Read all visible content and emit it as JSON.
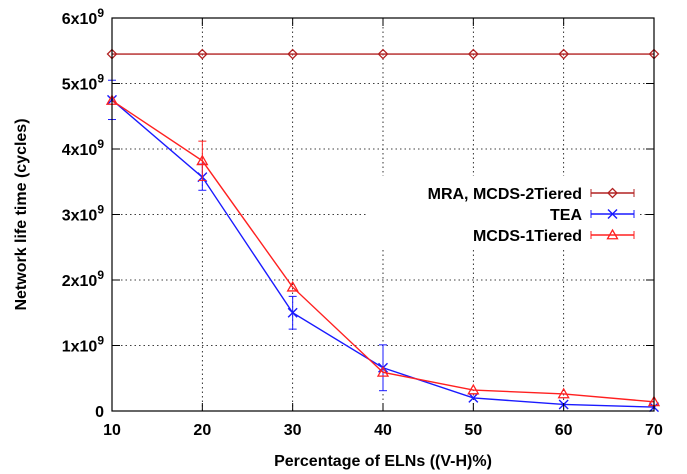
{
  "chart_data": {
    "type": "line",
    "xlabel": "Percentage of ELNs ((V-H)%)",
    "ylabel": "Network life time (cycles)",
    "xlim": [
      10,
      70
    ],
    "ylim": [
      0,
      6000000000
    ],
    "x": [
      10,
      20,
      30,
      40,
      50,
      60,
      70
    ],
    "x_ticks": [
      "10",
      "20",
      "30",
      "40",
      "50",
      "60",
      "70"
    ],
    "y_ticks": [
      {
        "value": 0,
        "base": "0",
        "exp": ""
      },
      {
        "value": 1000000000,
        "base": "1x10",
        "exp": "9"
      },
      {
        "value": 2000000000,
        "base": "2x10",
        "exp": "9"
      },
      {
        "value": 3000000000,
        "base": "3x10",
        "exp": "9"
      },
      {
        "value": 4000000000,
        "base": "4x10",
        "exp": "9"
      },
      {
        "value": 5000000000,
        "base": "5x10",
        "exp": "9"
      },
      {
        "value": 6000000000,
        "base": "6x10",
        "exp": "9"
      }
    ],
    "grid": true,
    "legend_position": "right",
    "series": [
      {
        "name": "MRA, MCDS-2Tiered",
        "color": "#b22222",
        "marker": "diamond",
        "values": [
          5450000000,
          5450000000,
          5450000000,
          5450000000,
          5450000000,
          5450000000,
          5450000000
        ],
        "errors": [
          0,
          0,
          0,
          0,
          0,
          0,
          0
        ]
      },
      {
        "name": "TEA",
        "color": "#1a1aff",
        "marker": "x",
        "values": [
          4750000000,
          3570000000,
          1500000000,
          660000000,
          200000000,
          100000000,
          60000000
        ],
        "errors": [
          300000000,
          200000000,
          250000000,
          350000000,
          0,
          0,
          0
        ]
      },
      {
        "name": "MCDS-1Tiered",
        "color": "#ff2020",
        "marker": "triangle",
        "values": [
          4740000000,
          3820000000,
          1890000000,
          590000000,
          320000000,
          260000000,
          140000000
        ],
        "errors": [
          0,
          300000000,
          0,
          0,
          0,
          0,
          0
        ]
      }
    ]
  }
}
